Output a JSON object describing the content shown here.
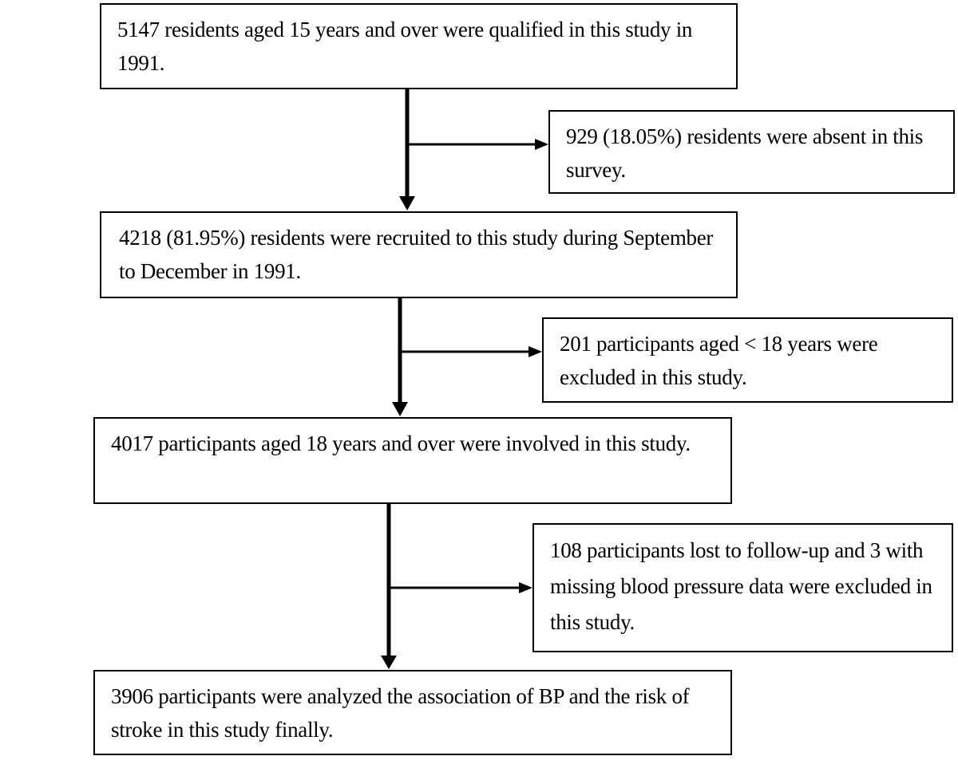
{
  "flowchart": {
    "steps": [
      {
        "text": "5147 residents aged 15 years and over were qualified in this study in 1991."
      },
      {
        "text": "4218 (81.95%) residents were recruited to this study during September to December in 1991."
      },
      {
        "text": "4017 participants aged 18 years and over were involved in this study."
      },
      {
        "text": "3906 participants were analyzed the association of BP and the risk of stroke in this study finally."
      }
    ],
    "exclusions": [
      {
        "text": "929 (18.05%) residents were absent in this survey."
      },
      {
        "text": "201 participants aged < 18 years were excluded in this study."
      },
      {
        "text": "108 participants lost to follow-up and 3 with missing blood pressure data were excluded in this study."
      }
    ]
  }
}
